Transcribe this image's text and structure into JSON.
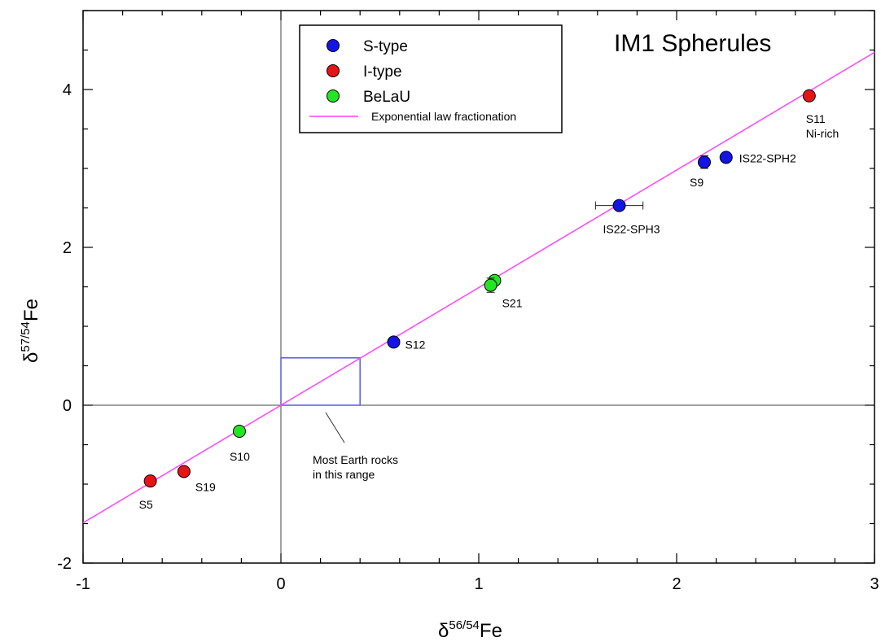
{
  "chart_data": {
    "type": "scatter",
    "title": "IM1 Spherules",
    "xlabel": {
      "prefix": "δ",
      "sup": "56/54",
      "suffix": "Fe"
    },
    "ylabel": {
      "prefix": "δ",
      "sup": "57/54",
      "suffix": "Fe"
    },
    "xlim": [
      -1,
      3
    ],
    "ylim": [
      -2,
      5
    ],
    "xticks": [
      -1,
      0,
      1,
      2,
      3
    ],
    "yticks": [
      -2,
      0,
      2,
      4
    ],
    "grid": false,
    "legend_position": "top-center",
    "series": [
      {
        "name": "S-type",
        "color": "#1414e6",
        "points": [
          {
            "label": "S12",
            "x": 0.57,
            "y": 0.8
          },
          {
            "label": "IS22-SPH3",
            "x": 1.71,
            "y": 2.53,
            "xerr": 0.12
          },
          {
            "label": "S9",
            "x": 2.14,
            "y": 3.08,
            "yerr": 0.08
          },
          {
            "label": "IS22-SPH2",
            "x": 2.25,
            "y": 3.14
          }
        ]
      },
      {
        "name": "I-type",
        "color": "#e61414",
        "points": [
          {
            "label": "S5",
            "x": -0.66,
            "y": -0.96
          },
          {
            "label": "S19",
            "x": -0.49,
            "y": -0.84
          },
          {
            "label": "S11\nNi-rich",
            "x": 2.67,
            "y": 3.92
          }
        ]
      },
      {
        "name": "BeLaU",
        "color": "#22e622",
        "points": [
          {
            "label": "S10",
            "x": -0.21,
            "y": -0.33,
            "yerr": 0.06
          },
          {
            "label": "",
            "x": 1.08,
            "y": 1.58,
            "yerr": 0.06
          },
          {
            "label": "S21",
            "x": 1.06,
            "y": 1.52,
            "yerr": 0.09
          }
        ]
      }
    ],
    "line": {
      "name": "Exponential law fractionation",
      "color": "#ff44ff",
      "slope": 1.49,
      "x_range": [
        -1,
        3
      ]
    },
    "box": {
      "x": [
        0,
        0.4
      ],
      "y": [
        0,
        0.6
      ],
      "color": "#5a5ae8"
    },
    "annotation": {
      "lines": [
        "Most Earth rocks",
        "in this range"
      ]
    }
  }
}
